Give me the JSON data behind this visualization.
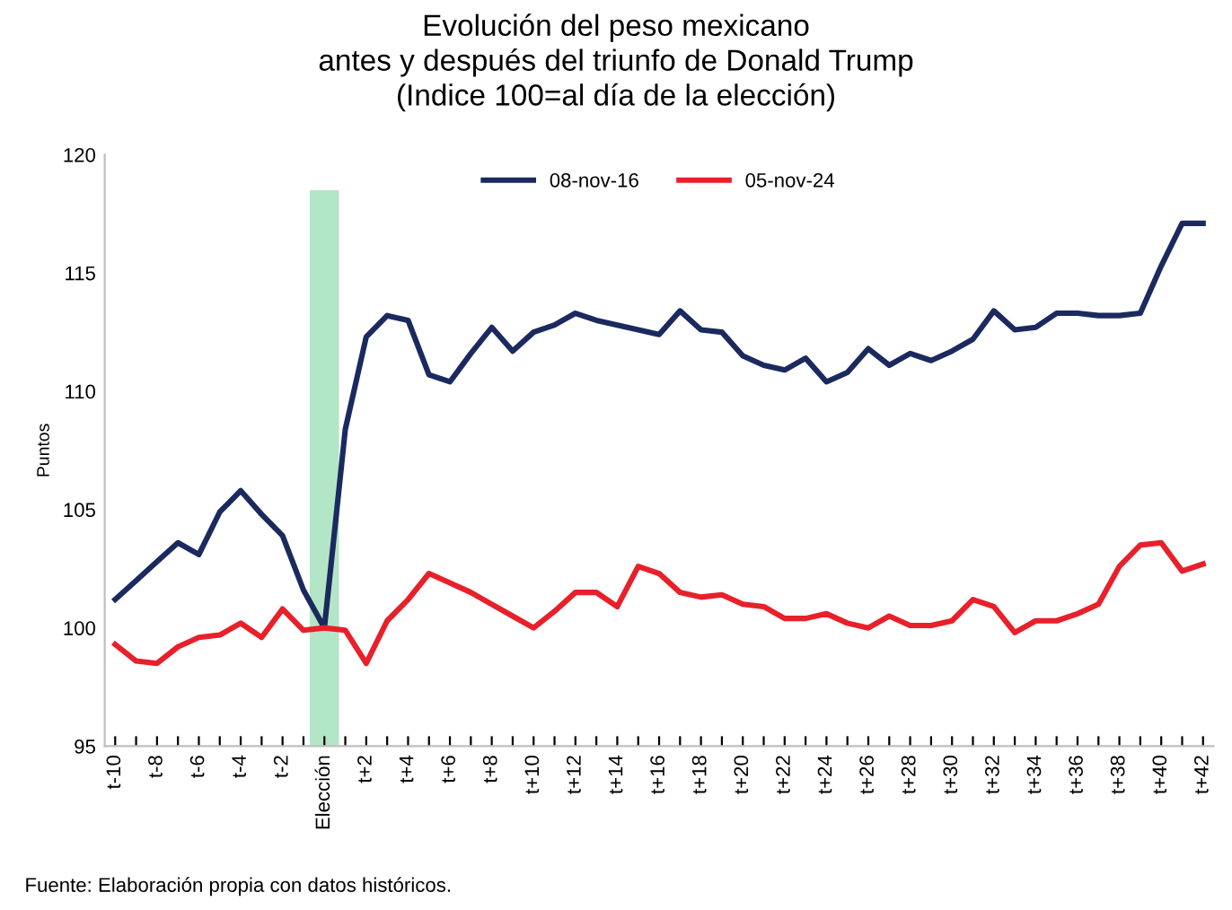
{
  "chart_data": {
    "type": "line",
    "title": "Evolución del peso mexicano\nantes y después del triunfo de Donald Trump\n(Indice 100=al día de la elección)",
    "ylabel": "Puntos",
    "categories": [
      "t-10",
      null,
      "t-8",
      null,
      "t-6",
      null,
      "t-4",
      null,
      "t-2",
      null,
      "Elección",
      null,
      "t+2",
      null,
      "t+4",
      null,
      "t+6",
      null,
      "t+8",
      null,
      "t+10",
      null,
      "t+12",
      null,
      "t+14",
      null,
      "t+16",
      null,
      "t+18",
      null,
      "t+20",
      null,
      "t+22",
      null,
      "t+24",
      null,
      "t+26",
      null,
      "t+28",
      null,
      "t+30",
      null,
      "t+32",
      null,
      "t+34",
      null,
      "t+36",
      null,
      "t+38",
      null,
      "t+40",
      null,
      "t+42"
    ],
    "series": [
      {
        "name": "08-nov-16",
        "color": "#1b2a5e",
        "values": [
          101.2,
          102.0,
          102.8,
          103.6,
          103.1,
          104.9,
          105.8,
          104.8,
          103.9,
          101.6,
          100.0,
          108.4,
          112.3,
          113.2,
          113.0,
          110.7,
          110.4,
          111.6,
          112.7,
          111.7,
          112.5,
          112.8,
          113.3,
          113.0,
          112.8,
          112.6,
          112.4,
          113.4,
          112.6,
          112.5,
          111.5,
          111.1,
          110.9,
          111.4,
          110.4,
          110.8,
          111.8,
          111.1,
          111.6,
          111.3,
          111.7,
          112.2,
          113.4,
          112.6,
          112.7,
          113.3,
          113.3,
          113.2,
          113.2,
          113.3,
          115.3,
          117.1,
          117.1
        ]
      },
      {
        "name": "05-nov-24",
        "color": "#e8202a",
        "values": [
          99.3,
          98.6,
          98.5,
          99.2,
          99.6,
          99.7,
          100.2,
          99.6,
          100.8,
          99.9,
          100.0,
          99.9,
          98.5,
          100.3,
          101.2,
          102.3,
          101.9,
          101.5,
          101.0,
          100.5,
          100.0,
          100.7,
          101.5,
          101.5,
          100.9,
          102.6,
          102.3,
          101.5,
          101.3,
          101.4,
          101.0,
          100.9,
          100.4,
          100.4,
          100.6,
          100.2,
          100.0,
          100.5,
          100.1,
          100.1,
          100.3,
          101.2,
          100.9,
          99.8,
          100.3,
          100.3,
          100.6,
          101.0,
          102.6,
          103.5,
          103.6,
          102.4,
          102.7
        ]
      }
    ],
    "ylim": [
      95,
      120
    ],
    "yticks": [
      95,
      100,
      105,
      110,
      115,
      120
    ],
    "bands": [
      {
        "axis": "x",
        "from": "Elección",
        "to": "Elección",
        "color": "#b3e6c6"
      }
    ],
    "annotations": [
      "Fuente: Elaboración propia con datos históricos."
    ],
    "legend": "top",
    "grid": false,
    "marker": "none",
    "line_style": "solid"
  }
}
